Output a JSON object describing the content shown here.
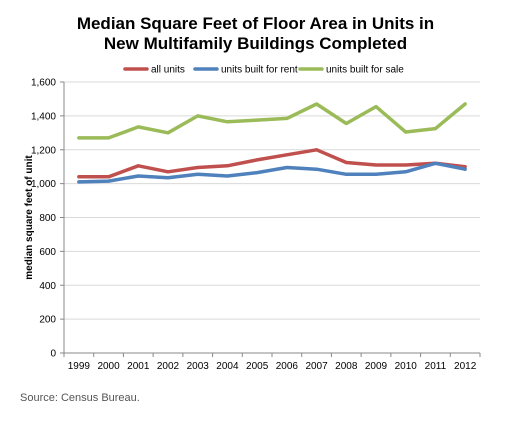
{
  "title": {
    "line1": "Median Square Feet of Floor Area in Units in",
    "line2": "New Multifamily Buildings Completed"
  },
  "source": "Source: Census Bureau.",
  "chart_data": {
    "type": "line",
    "title": "Median Square Feet of Floor Area in Units in New Multifamily Buildings Completed",
    "xlabel": "",
    "ylabel": "median square feet of unit",
    "x": [
      "1999",
      "2000",
      "2001",
      "2002",
      "2003",
      "2004",
      "2005",
      "2006",
      "2007",
      "2008",
      "2009",
      "2010",
      "2011",
      "2012"
    ],
    "ylim": [
      0,
      1600
    ],
    "yticks": [
      "0",
      "200",
      "400",
      "600",
      "800",
      "1,000",
      "1,200",
      "1,400",
      "1,600"
    ],
    "grid": "horizontal",
    "legend_position": "top",
    "series": [
      {
        "name": "all units",
        "color": "#C0504D",
        "values": [
          1040,
          1040,
          1105,
          1070,
          1095,
          1105,
          1140,
          1170,
          1200,
          1125,
          1110,
          1110,
          1120,
          1100
        ]
      },
      {
        "name": "units built for rent",
        "color": "#4F81BD",
        "values": [
          1010,
          1015,
          1045,
          1035,
          1055,
          1045,
          1065,
          1095,
          1085,
          1055,
          1055,
          1070,
          1120,
          1085
        ]
      },
      {
        "name": "units built for sale",
        "color": "#9BBB59",
        "values": [
          1270,
          1270,
          1335,
          1300,
          1400,
          1365,
          1375,
          1385,
          1470,
          1355,
          1455,
          1305,
          1325,
          1470
        ]
      }
    ]
  }
}
